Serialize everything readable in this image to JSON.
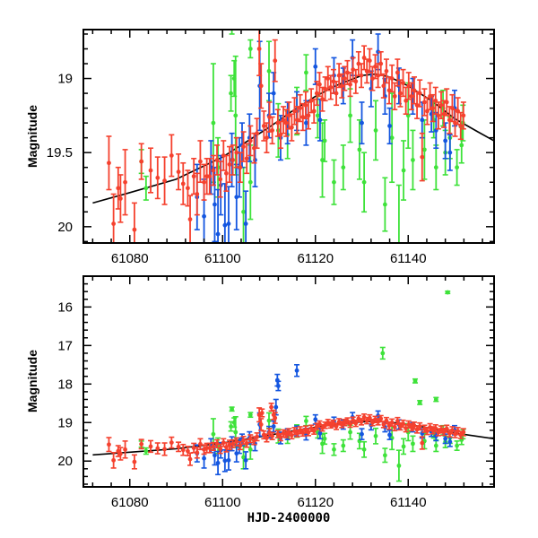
{
  "chart_data": [
    {
      "type": "scatter",
      "panel": "top",
      "xlabel": "",
      "ylabel": "Magnitude",
      "xlim": [
        61070,
        61158.5
      ],
      "ylim": [
        20.11,
        18.67
      ],
      "y_inverted": true,
      "xticks": [
        61080,
        61100,
        61120,
        61140
      ],
      "xtick_labels": [
        "61080",
        "61100",
        "61120",
        "61140"
      ],
      "yticks": [
        19,
        19.5,
        20
      ],
      "ytick_labels": [
        "19",
        "19.5",
        "20"
      ],
      "grid": false,
      "legend": "none",
      "series_colors": {
        "red": "#f5412e",
        "blue": "#1456e0",
        "green": "#3ee23a",
        "model": "#000000"
      }
    },
    {
      "type": "scatter",
      "panel": "bottom",
      "xlabel": "HJD-2400000",
      "ylabel": "Magnitude",
      "xlim": [
        61070,
        61158.5
      ],
      "ylim": [
        20.67,
        15.2
      ],
      "y_inverted": true,
      "xticks": [
        61080,
        61100,
        61120,
        61140
      ],
      "xtick_labels": [
        "61080",
        "61100",
        "61120",
        "61140"
      ],
      "yticks": [
        16,
        17,
        18,
        19,
        20
      ],
      "ytick_labels": [
        "16",
        "17",
        "18",
        "19",
        "20"
      ],
      "grid": false,
      "legend": "none",
      "series_colors": {
        "red": "#f5412e",
        "blue": "#1456e0",
        "green": "#3ee23a",
        "model": "#000000"
      }
    }
  ],
  "model_curve": {
    "name": "model",
    "x": [
      61072,
      61080,
      61090,
      61100,
      61105,
      61110,
      61115,
      61120,
      61125,
      61130,
      61133,
      61136,
      61140,
      61145,
      61150,
      61155,
      61158.5
    ],
    "y": [
      19.84,
      19.77,
      19.68,
      19.53,
      19.43,
      19.33,
      19.22,
      19.12,
      19.04,
      18.98,
      18.97,
      18.99,
      19.05,
      19.15,
      19.27,
      19.36,
      19.42
    ]
  },
  "series": [
    {
      "name": "red",
      "color": "#f5412e",
      "points": [
        [
          61075.5,
          19.57,
          0.18
        ],
        [
          61076.5,
          19.98,
          0.2
        ],
        [
          61077.5,
          19.74,
          0.14
        ],
        [
          61078.0,
          19.81,
          0.16
        ],
        [
          61079.0,
          19.7,
          0.22
        ],
        [
          61081.0,
          20.02,
          0.18
        ],
        [
          61082.5,
          19.56,
          0.12
        ],
        [
          61084.5,
          19.62,
          0.15
        ],
        [
          61086.0,
          19.67,
          0.14
        ],
        [
          61087.5,
          19.69,
          0.16
        ],
        [
          61089.0,
          19.52,
          0.14
        ],
        [
          61090.5,
          19.63,
          0.12
        ],
        [
          61091.5,
          19.71,
          0.14
        ],
        [
          61092.5,
          19.74,
          0.12
        ],
        [
          61093.0,
          19.95,
          0.16
        ],
        [
          61093.8,
          19.66,
          0.12
        ],
        [
          61094.5,
          19.78,
          0.14
        ],
        [
          61095.2,
          19.56,
          0.14
        ],
        [
          61096.0,
          19.7,
          0.12
        ],
        [
          61096.6,
          19.66,
          0.12
        ],
        [
          61097.2,
          19.66,
          0.12
        ],
        [
          61098.0,
          19.62,
          0.1
        ],
        [
          61098.8,
          19.55,
          0.1
        ],
        [
          61099.5,
          19.68,
          0.12
        ],
        [
          61100.2,
          19.52,
          0.1
        ],
        [
          61100.8,
          19.64,
          0.12
        ],
        [
          61101.5,
          19.58,
          0.12
        ],
        [
          61102.2,
          19.55,
          0.1
        ],
        [
          61103.0,
          19.5,
          0.1
        ],
        [
          61103.8,
          19.6,
          0.1
        ],
        [
          61104.5,
          19.46,
          0.1
        ],
        [
          61105.2,
          19.54,
          0.1
        ],
        [
          61106.0,
          19.42,
          0.1
        ],
        [
          61106.8,
          19.47,
          0.1
        ],
        [
          61107.4,
          19.37,
          0.1
        ],
        [
          61107.9,
          18.8,
          0.18
        ],
        [
          61108.3,
          19.05,
          0.15
        ],
        [
          61108.9,
          19.32,
          0.1
        ],
        [
          61109.5,
          19.4,
          0.1
        ],
        [
          61110.1,
          19.26,
          0.1
        ],
        [
          61110.7,
          19.35,
          0.09
        ],
        [
          61111.3,
          18.88,
          0.14
        ],
        [
          61111.9,
          19.3,
          0.09
        ],
        [
          61112.5,
          19.38,
          0.09
        ],
        [
          61113.1,
          19.28,
          0.09
        ],
        [
          61113.7,
          19.3,
          0.09
        ],
        [
          61114.3,
          19.25,
          0.09
        ],
        [
          61114.9,
          19.33,
          0.09
        ],
        [
          61115.5,
          19.22,
          0.09
        ],
        [
          61116.1,
          19.28,
          0.09
        ],
        [
          61116.7,
          19.2,
          0.09
        ],
        [
          61117.3,
          19.26,
          0.09
        ],
        [
          61117.9,
          19.18,
          0.09
        ],
        [
          61118.5,
          19.25,
          0.09
        ],
        [
          61119.1,
          19.15,
          0.08
        ],
        [
          61119.7,
          19.22,
          0.08
        ],
        [
          61120.3,
          19.1,
          0.08
        ],
        [
          61120.9,
          19.04,
          0.08
        ],
        [
          61121.5,
          19.14,
          0.08
        ],
        [
          61122.1,
          19.07,
          0.08
        ],
        [
          61122.7,
          19.0,
          0.08
        ],
        [
          61123.3,
          19.06,
          0.08
        ],
        [
          61123.9,
          19.02,
          0.08
        ],
        [
          61124.5,
          19.1,
          0.08
        ],
        [
          61125.1,
          18.98,
          0.08
        ],
        [
          61125.7,
          19.05,
          0.08
        ],
        [
          61126.3,
          19.0,
          0.08
        ],
        [
          61126.9,
          18.96,
          0.08
        ],
        [
          61127.5,
          19.04,
          0.08
        ],
        [
          61128.1,
          18.94,
          0.08
        ],
        [
          61128.7,
          19.02,
          0.08
        ],
        [
          61129.3,
          18.9,
          0.08
        ],
        [
          61129.9,
          18.98,
          0.08
        ],
        [
          61130.5,
          18.86,
          0.08
        ],
        [
          61131.1,
          18.95,
          0.08
        ],
        [
          61131.7,
          18.88,
          0.08
        ],
        [
          61132.3,
          19.0,
          0.08
        ],
        [
          61132.9,
          18.92,
          0.08
        ],
        [
          61133.5,
          18.98,
          0.08
        ],
        [
          61134.1,
          18.9,
          0.08
        ],
        [
          61134.7,
          19.05,
          0.08
        ],
        [
          61135.3,
          18.95,
          0.08
        ],
        [
          61135.9,
          19.08,
          0.09
        ],
        [
          61136.5,
          19.0,
          0.09
        ],
        [
          61137.1,
          19.12,
          0.09
        ],
        [
          61137.7,
          18.96,
          0.09
        ],
        [
          61138.3,
          19.1,
          0.09
        ],
        [
          61138.9,
          19.03,
          0.09
        ],
        [
          61139.5,
          19.15,
          0.09
        ],
        [
          61140.1,
          19.05,
          0.09
        ],
        [
          61140.7,
          19.12,
          0.09
        ],
        [
          61141.3,
          19.08,
          0.09
        ],
        [
          61141.9,
          19.18,
          0.09
        ],
        [
          61142.5,
          19.1,
          0.09
        ],
        [
          61143.0,
          19.53,
          0.16
        ],
        [
          61143.5,
          19.16,
          0.09
        ],
        [
          61144.1,
          19.22,
          0.09
        ],
        [
          61144.7,
          19.12,
          0.09
        ],
        [
          61145.3,
          19.2,
          0.09
        ],
        [
          61145.9,
          19.15,
          0.09
        ],
        [
          61146.5,
          19.25,
          0.09
        ],
        [
          61147.1,
          19.18,
          0.09
        ],
        [
          61147.7,
          19.24,
          0.09
        ],
        [
          61148.3,
          19.16,
          0.09
        ],
        [
          61148.9,
          19.28,
          0.09
        ],
        [
          61149.5,
          19.2,
          0.09
        ],
        [
          61150.1,
          19.3,
          0.09
        ],
        [
          61150.7,
          19.22,
          0.09
        ],
        [
          61151.3,
          19.32,
          0.09
        ],
        [
          61151.9,
          19.25,
          0.09
        ]
      ]
    },
    {
      "name": "blue",
      "color": "#1456e0",
      "points": [
        [
          61094.5,
          19.8,
          0.22
        ],
        [
          61096.0,
          19.93,
          0.25
        ],
        [
          61097.5,
          19.6,
          0.18
        ],
        [
          61098.3,
          19.85,
          0.25
        ],
        [
          61099.0,
          20.05,
          0.3
        ],
        [
          61099.6,
          19.72,
          0.2
        ],
        [
          61100.5,
          19.99,
          0.28
        ],
        [
          61101.3,
          19.98,
          0.25
        ],
        [
          61102.0,
          19.55,
          0.18
        ],
        [
          61103.0,
          19.8,
          0.22
        ],
        [
          61103.6,
          19.6,
          0.2
        ],
        [
          61104.2,
          19.45,
          0.15
        ],
        [
          61105.0,
          19.98,
          0.22
        ],
        [
          61105.8,
          19.4,
          0.16
        ],
        [
          61107.0,
          19.55,
          0.18
        ],
        [
          61108.0,
          19.05,
          0.3
        ],
        [
          61110.0,
          19.25,
          0.15
        ],
        [
          61111.0,
          19.1,
          0.14
        ],
        [
          61112.5,
          19.4,
          0.15
        ],
        [
          61114.0,
          19.3,
          0.14
        ],
        [
          61116.0,
          19.22,
          0.13
        ],
        [
          61118.0,
          19.3,
          0.15
        ],
        [
          61120.0,
          18.92,
          0.12
        ],
        [
          61121.0,
          19.28,
          0.14
        ],
        [
          61124.0,
          18.98,
          0.12
        ],
        [
          61126.0,
          19.05,
          0.12
        ],
        [
          61128.0,
          18.86,
          0.12
        ],
        [
          61130.0,
          19.3,
          0.14
        ],
        [
          61132.0,
          19.07,
          0.12
        ],
        [
          61133.5,
          18.82,
          0.12
        ],
        [
          61135.0,
          19.12,
          0.12
        ],
        [
          61136.0,
          19.32,
          0.12
        ],
        [
          61138.0,
          19.05,
          0.12
        ],
        [
          61141.0,
          19.12,
          0.12
        ],
        [
          61143.0,
          19.28,
          0.12
        ],
        [
          61145.0,
          19.24,
          0.12
        ],
        [
          61146.0,
          19.35,
          0.12
        ],
        [
          61148.0,
          19.42,
          0.12
        ],
        [
          61149.0,
          19.5,
          0.12
        ],
        [
          61150.0,
          19.2,
          0.12
        ]
      ]
    },
    {
      "name": "green",
      "color": "#3ee23a",
      "points": [
        [
          61082.5,
          19.56,
          0.08
        ],
        [
          61083.5,
          19.74,
          0.08
        ],
        [
          61098.0,
          19.3,
          0.4
        ],
        [
          61099.0,
          19.6,
          0.2
        ],
        [
          61101.8,
          19.1,
          0.12
        ],
        [
          61102.5,
          19.0,
          0.12
        ],
        [
          61102.8,
          19.25,
          0.4
        ],
        [
          61104.5,
          19.9,
          0.3
        ],
        [
          61106.0,
          19.7,
          0.25
        ],
        [
          61110.0,
          18.95,
          0.2
        ],
        [
          61112.0,
          19.35,
          0.18
        ],
        [
          61114.0,
          19.38,
          0.16
        ],
        [
          61116.0,
          19.22,
          0.16
        ],
        [
          61118.0,
          18.96,
          0.12
        ],
        [
          61120.5,
          19.25,
          0.15
        ],
        [
          61121.5,
          19.55,
          0.25
        ],
        [
          61122.0,
          19.42,
          0.14
        ],
        [
          61124.0,
          19.7,
          0.15
        ],
        [
          61126.0,
          19.6,
          0.15
        ],
        [
          61127.5,
          19.25,
          0.18
        ],
        [
          61129.5,
          19.48,
          0.2
        ],
        [
          61130.5,
          19.7,
          0.2
        ],
        [
          61133.0,
          19.35,
          0.2
        ],
        [
          61135.0,
          19.85,
          0.18
        ],
        [
          61136.5,
          19.4,
          0.3
        ],
        [
          61138.0,
          20.12,
          0.4
        ],
        [
          61139.0,
          19.62,
          0.2
        ],
        [
          61140.0,
          19.25,
          0.22
        ],
        [
          61141.0,
          19.55,
          0.2
        ],
        [
          61143.5,
          19.48,
          0.2
        ],
        [
          61145.5,
          19.28,
          0.12
        ],
        [
          61146.0,
          19.6,
          0.15
        ],
        [
          61147.5,
          19.2,
          0.12
        ],
        [
          61148.0,
          19.5,
          0.15
        ],
        [
          61149.0,
          19.4,
          0.14
        ],
        [
          61150.5,
          19.6,
          0.12
        ],
        [
          61151.5,
          19.45,
          0.12
        ],
        [
          61151.8,
          19.3,
          0.12
        ],
        [
          61134.5,
          17.2,
          0.15
        ],
        [
          61141.5,
          17.92,
          0.05
        ],
        [
          61148.5,
          15.62,
          0.03
        ],
        [
          61146.0,
          18.4,
          0.05
        ],
        [
          61142.5,
          18.48,
          0.05
        ],
        [
          61106.0,
          18.8,
          0.06
        ],
        [
          61102.0,
          18.65,
          0.05
        ]
      ]
    }
  ],
  "bottom_only_points": {
    "blue": [
      [
        61111.8,
        17.9,
        0.15
      ],
      [
        61112.0,
        18.05,
        0.12
      ],
      [
        61116.0,
        17.65,
        0.15
      ],
      [
        61111.5,
        18.6,
        0.2
      ]
    ],
    "red": [
      [
        61108.5,
        18.75,
        0.1
      ],
      [
        61110.5,
        18.6,
        0.1
      ],
      [
        61111.0,
        18.8,
        0.12
      ]
    ]
  }
}
